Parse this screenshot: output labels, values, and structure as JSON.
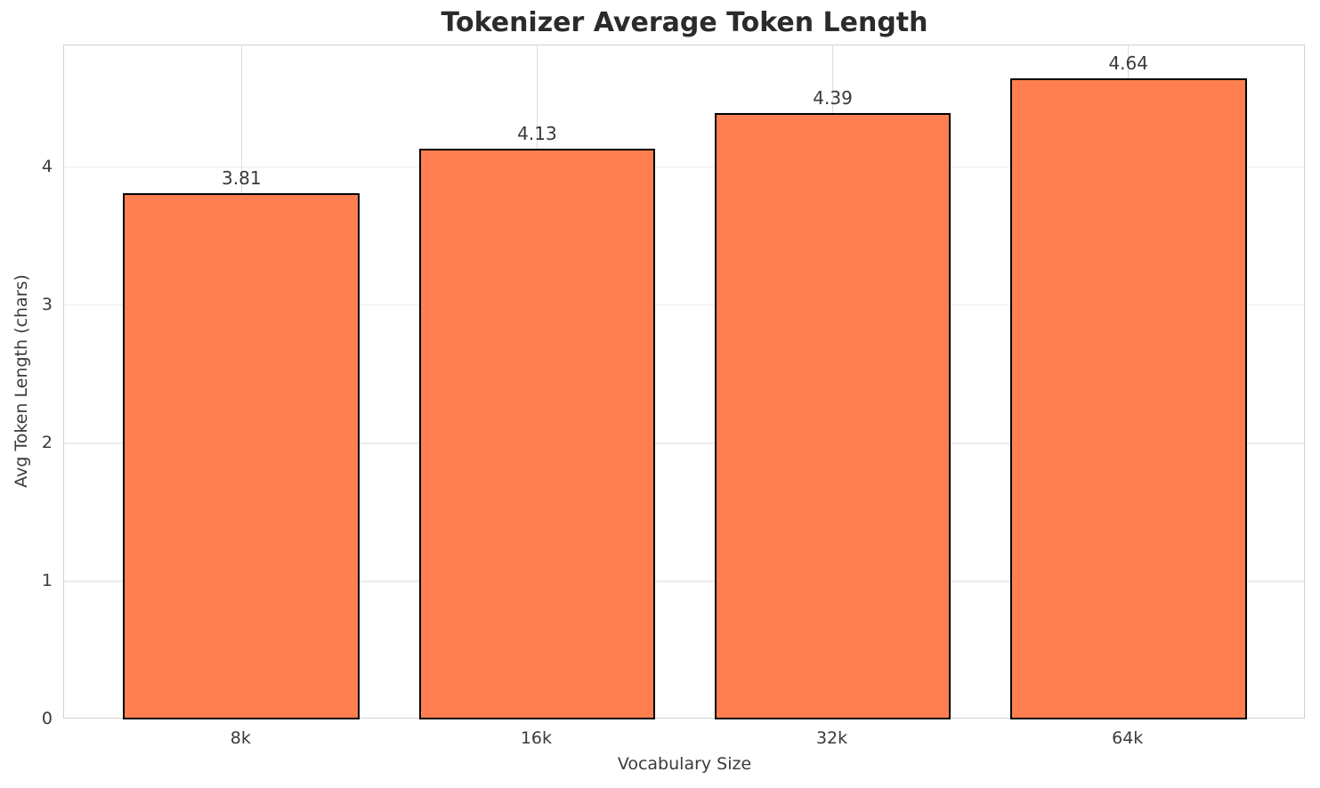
{
  "chart_data": {
    "type": "bar",
    "title": "Tokenizer Average Token Length",
    "xlabel": "Vocabulary Size",
    "ylabel": "Avg Token Length (chars)",
    "categories": [
      "8k",
      "16k",
      "32k",
      "64k"
    ],
    "values": [
      3.81,
      4.13,
      4.39,
      4.64
    ],
    "bar_value_labels": [
      "3.81",
      "4.13",
      "4.39",
      "4.64"
    ],
    "ytick_labels": [
      "0",
      "1",
      "2",
      "3",
      "4"
    ],
    "ytick_values": [
      0,
      1,
      2,
      3,
      4
    ],
    "ylim": [
      0,
      4.88
    ],
    "xlim_slots": [
      -0.6,
      3.6
    ],
    "bar_width_fraction": 0.8,
    "grid": "both",
    "legend": "none",
    "colors": {
      "bar_fill": "#FF7F50",
      "bar_edge": "#000000",
      "grid_horizontal": "#EBEBEB",
      "grid_vertical": "#DCDCDC",
      "spine": "#D2D2D2",
      "title_text": "#2B2B2B",
      "label_text": "#3A3A3A",
      "background": "#FFFFFF"
    }
  }
}
